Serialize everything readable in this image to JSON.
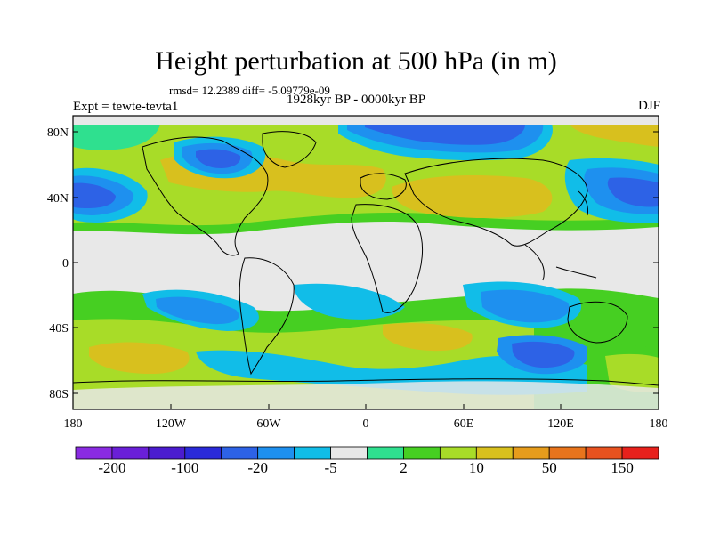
{
  "title": "Height perturbation at 500 hPa (in m)",
  "stats": "rmsd= 12.2389 diff= -5.09779e-09",
  "left_label": "Expt = tewte-tevta1",
  "center_label": "1928kyr BP - 0000kyr BP",
  "right_label": "DJF",
  "map": {
    "lat_ticks": [
      "80N",
      "40N",
      "0",
      "40S",
      "80S"
    ],
    "lon_ticks": [
      "180",
      "120W",
      "60W",
      "0",
      "60E",
      "120E",
      "180"
    ]
  },
  "colorbar": {
    "colors": [
      "#8a2be2",
      "#6a1fd8",
      "#4b1ccf",
      "#2a2ad9",
      "#2d62e6",
      "#1e90ef",
      "#11bde8",
      "#e8e8e8",
      "#2fe08f",
      "#46cf22",
      "#a8dc28",
      "#d8c01e",
      "#e69c1c",
      "#e8741c",
      "#e8521f",
      "#e8211c"
    ],
    "labels": [
      "-200",
      "-100",
      "-20",
      "-5",
      "2",
      "10",
      "50",
      "150"
    ]
  }
}
